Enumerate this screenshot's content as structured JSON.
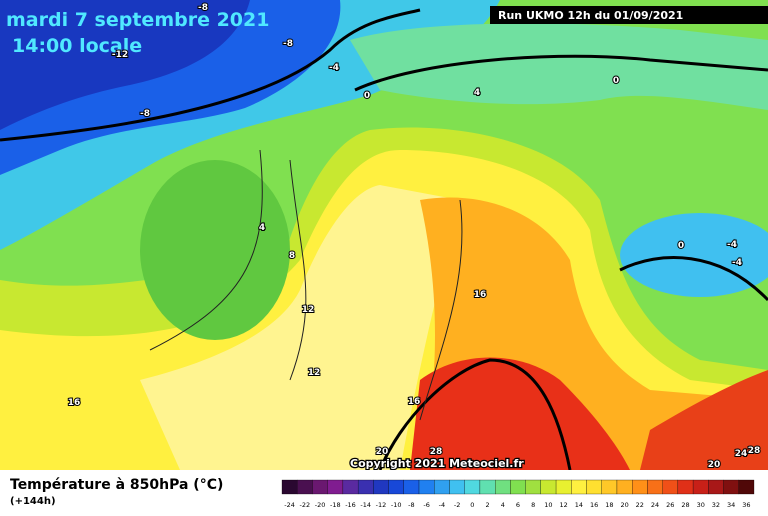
{
  "header": {
    "title": "mardi 7 septembre 2021",
    "subtitle": "14:00 locale",
    "run": "Run UKMO 12h du 01/09/2021"
  },
  "copyright": "Copyright 2021 Meteociel.fr",
  "legend": {
    "title": "Température à 850hPa (°C)",
    "lead": "(+144h)",
    "ticks": [
      -24,
      -22,
      -20,
      -18,
      -16,
      -14,
      -12,
      -10,
      -8,
      -6,
      -4,
      -2,
      0,
      2,
      4,
      6,
      8,
      10,
      12,
      14,
      16,
      18,
      20,
      22,
      24,
      26,
      28,
      30,
      32,
      34,
      36
    ],
    "colors": [
      "#2a0830",
      "#4a1050",
      "#6a1870",
      "#801c90",
      "#5a2aa0",
      "#3a30b0",
      "#2038c0",
      "#1848d8",
      "#1a60e8",
      "#2080f0",
      "#30a0f0",
      "#40c0f0",
      "#50d8e0",
      "#60e0b0",
      "#70e080",
      "#80e050",
      "#a0e040",
      "#c8e830",
      "#e8f030",
      "#fff040",
      "#ffe030",
      "#ffc828",
      "#ffb020",
      "#ff9018",
      "#f87018",
      "#f05018",
      "#e03018",
      "#c82018",
      "#a81818",
      "#801010",
      "#500808"
    ]
  },
  "contours": [
    -8,
    -12,
    -8,
    -4,
    -8,
    0,
    4,
    0,
    4,
    8,
    12,
    12,
    16,
    16,
    16,
    20,
    28,
    0,
    -4,
    -4,
    20,
    24,
    28
  ]
}
